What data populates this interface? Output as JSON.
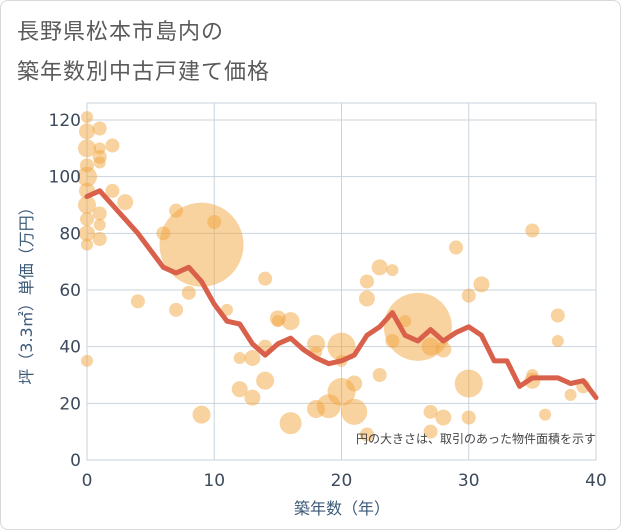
{
  "title_line1": "長野県松本市島内の",
  "title_line2": "築年数別中古戸建て価格",
  "chart_data": {
    "type": "scatter",
    "xlabel": "築年数（年）",
    "ylabel": "坪（3.3㎡）単価（万円）",
    "xlim": [
      0,
      40
    ],
    "ylim": [
      0,
      126
    ],
    "xticks": [
      0,
      10,
      20,
      30,
      40
    ],
    "yticks": [
      0,
      20,
      40,
      60,
      80,
      100,
      120
    ],
    "xtick_labels": [
      "0",
      "10",
      "20",
      "30",
      "40"
    ],
    "ytick_labels": [
      "0",
      "20",
      "40",
      "60",
      "80",
      "100",
      "120"
    ],
    "grid": true,
    "note": "円の大きさは、取引のあった物件面積を示す",
    "colors": {
      "bubble": "#f2a640",
      "line": "#d9604a",
      "grid": "#c9d3de"
    },
    "trend_line": {
      "x": [
        0,
        1,
        2,
        3,
        4,
        5,
        6,
        7,
        8,
        9,
        10,
        11,
        12,
        13,
        14,
        15,
        16,
        17,
        18,
        19,
        20,
        21,
        22,
        23,
        24,
        25,
        26,
        27,
        28,
        29,
        30,
        31,
        32,
        33,
        34,
        35,
        36,
        37,
        38,
        39,
        40
      ],
      "y": [
        93,
        95,
        90,
        85,
        80,
        74,
        68,
        66,
        68,
        63,
        55,
        49,
        48,
        41,
        37,
        41,
        43,
        39,
        36,
        34,
        35,
        37,
        44,
        47,
        52,
        44,
        42,
        46,
        42,
        45,
        47,
        44,
        35,
        35,
        26,
        29,
        29,
        29,
        27,
        28,
        22
      ]
    },
    "bubbles": [
      {
        "x": 0,
        "y": 121,
        "s": 6
      },
      {
        "x": 0,
        "y": 116,
        "s": 8
      },
      {
        "x": 0,
        "y": 110,
        "s": 9
      },
      {
        "x": 0,
        "y": 104,
        "s": 7
      },
      {
        "x": 0,
        "y": 100,
        "s": 10
      },
      {
        "x": 0,
        "y": 95,
        "s": 8
      },
      {
        "x": 0,
        "y": 90,
        "s": 9
      },
      {
        "x": 0,
        "y": 85,
        "s": 7
      },
      {
        "x": 0,
        "y": 80,
        "s": 8
      },
      {
        "x": 0,
        "y": 76,
        "s": 6
      },
      {
        "x": 0,
        "y": 35,
        "s": 6
      },
      {
        "x": 1,
        "y": 117,
        "s": 7
      },
      {
        "x": 1,
        "y": 110,
        "s": 6
      },
      {
        "x": 1,
        "y": 107,
        "s": 7
      },
      {
        "x": 1,
        "y": 105,
        "s": 6
      },
      {
        "x": 1,
        "y": 87,
        "s": 7
      },
      {
        "x": 1,
        "y": 83,
        "s": 6
      },
      {
        "x": 1,
        "y": 78,
        "s": 7
      },
      {
        "x": 2,
        "y": 111,
        "s": 7
      },
      {
        "x": 2,
        "y": 95,
        "s": 7
      },
      {
        "x": 3,
        "y": 91,
        "s": 8
      },
      {
        "x": 4,
        "y": 56,
        "s": 7
      },
      {
        "x": 6,
        "y": 80,
        "s": 7
      },
      {
        "x": 7,
        "y": 88,
        "s": 7
      },
      {
        "x": 7,
        "y": 53,
        "s": 7
      },
      {
        "x": 8,
        "y": 59,
        "s": 7
      },
      {
        "x": 9,
        "y": 76,
        "s": 42
      },
      {
        "x": 9,
        "y": 16,
        "s": 9
      },
      {
        "x": 10,
        "y": 84,
        "s": 7
      },
      {
        "x": 11,
        "y": 53,
        "s": 6
      },
      {
        "x": 12,
        "y": 36,
        "s": 6
      },
      {
        "x": 12,
        "y": 25,
        "s": 8
      },
      {
        "x": 13,
        "y": 36,
        "s": 8
      },
      {
        "x": 13,
        "y": 22,
        "s": 8
      },
      {
        "x": 14,
        "y": 64,
        "s": 7
      },
      {
        "x": 14,
        "y": 40,
        "s": 7
      },
      {
        "x": 14,
        "y": 28,
        "s": 9
      },
      {
        "x": 15,
        "y": 50,
        "s": 8
      },
      {
        "x": 15,
        "y": 49,
        "s": 6
      },
      {
        "x": 16,
        "y": 49,
        "s": 9
      },
      {
        "x": 16,
        "y": 13,
        "s": 11
      },
      {
        "x": 18,
        "y": 41,
        "s": 9
      },
      {
        "x": 18,
        "y": 38,
        "s": 6
      },
      {
        "x": 18,
        "y": 18,
        "s": 9
      },
      {
        "x": 19,
        "y": 19,
        "s": 12
      },
      {
        "x": 20,
        "y": 40,
        "s": 14
      },
      {
        "x": 20,
        "y": 35,
        "s": 6
      },
      {
        "x": 20,
        "y": 24,
        "s": 14
      },
      {
        "x": 21,
        "y": 27,
        "s": 8
      },
      {
        "x": 21,
        "y": 17,
        "s": 13
      },
      {
        "x": 22,
        "y": 63,
        "s": 7
      },
      {
        "x": 22,
        "y": 57,
        "s": 8
      },
      {
        "x": 22,
        "y": 9,
        "s": 7
      },
      {
        "x": 23,
        "y": 68,
        "s": 8
      },
      {
        "x": 23,
        "y": 30,
        "s": 7
      },
      {
        "x": 24,
        "y": 67,
        "s": 6
      },
      {
        "x": 24,
        "y": 42,
        "s": 7
      },
      {
        "x": 25,
        "y": 49,
        "s": 6
      },
      {
        "x": 26,
        "y": 47,
        "s": 34
      },
      {
        "x": 27,
        "y": 17,
        "s": 7
      },
      {
        "x": 27,
        "y": 10,
        "s": 7
      },
      {
        "x": 27,
        "y": 40,
        "s": 9
      },
      {
        "x": 28,
        "y": 39,
        "s": 8
      },
      {
        "x": 28,
        "y": 15,
        "s": 8
      },
      {
        "x": 29,
        "y": 75,
        "s": 7
      },
      {
        "x": 30,
        "y": 58,
        "s": 7
      },
      {
        "x": 30,
        "y": 27,
        "s": 14
      },
      {
        "x": 30,
        "y": 15,
        "s": 7
      },
      {
        "x": 31,
        "y": 62,
        "s": 8
      },
      {
        "x": 35,
        "y": 81,
        "s": 7
      },
      {
        "x": 35,
        "y": 30,
        "s": 6
      },
      {
        "x": 35,
        "y": 28,
        "s": 8
      },
      {
        "x": 36,
        "y": 16,
        "s": 6
      },
      {
        "x": 37,
        "y": 51,
        "s": 7
      },
      {
        "x": 37,
        "y": 42,
        "s": 6
      },
      {
        "x": 38,
        "y": 23,
        "s": 6
      },
      {
        "x": 39,
        "y": 26,
        "s": 7
      }
    ]
  }
}
